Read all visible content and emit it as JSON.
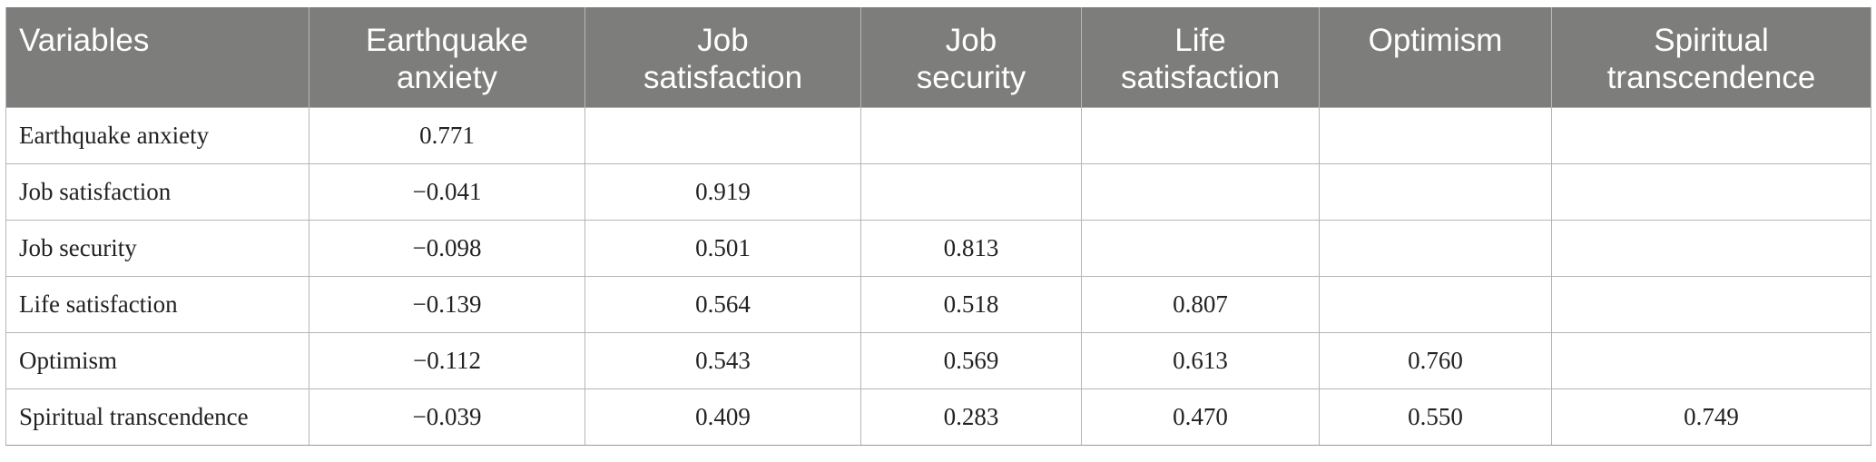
{
  "table": {
    "header": {
      "variables": "Variables",
      "col1": [
        "Earthquake",
        "anxiety"
      ],
      "col2": [
        "Job",
        "satisfaction"
      ],
      "col3": [
        "Job",
        "security"
      ],
      "col4": [
        "Life",
        "satisfaction"
      ],
      "col5": [
        "Optimism"
      ],
      "col6": [
        "Spiritual",
        "transcendence"
      ]
    },
    "rows": [
      {
        "label": "Earthquake anxiety",
        "cells": [
          "0.771",
          "",
          "",
          "",
          "",
          ""
        ]
      },
      {
        "label": "Job satisfaction",
        "cells": [
          "−0.041",
          "0.919",
          "",
          "",
          "",
          ""
        ]
      },
      {
        "label": "Job security",
        "cells": [
          "−0.098",
          "0.501",
          "0.813",
          "",
          "",
          ""
        ]
      },
      {
        "label": "Life satisfaction",
        "cells": [
          "−0.139",
          "0.564",
          "0.518",
          "0.807",
          "",
          ""
        ]
      },
      {
        "label": "Optimism",
        "cells": [
          "−0.112",
          "0.543",
          "0.569",
          "0.613",
          "0.760",
          ""
        ]
      },
      {
        "label": "Spiritual transcendence",
        "cells": [
          "−0.039",
          "0.409",
          "0.283",
          "0.470",
          "0.550",
          "0.749"
        ]
      }
    ]
  },
  "colors": {
    "header_bg": "#7d7e7b",
    "header_text": "#ffffff",
    "border": "#b5b5b5"
  }
}
